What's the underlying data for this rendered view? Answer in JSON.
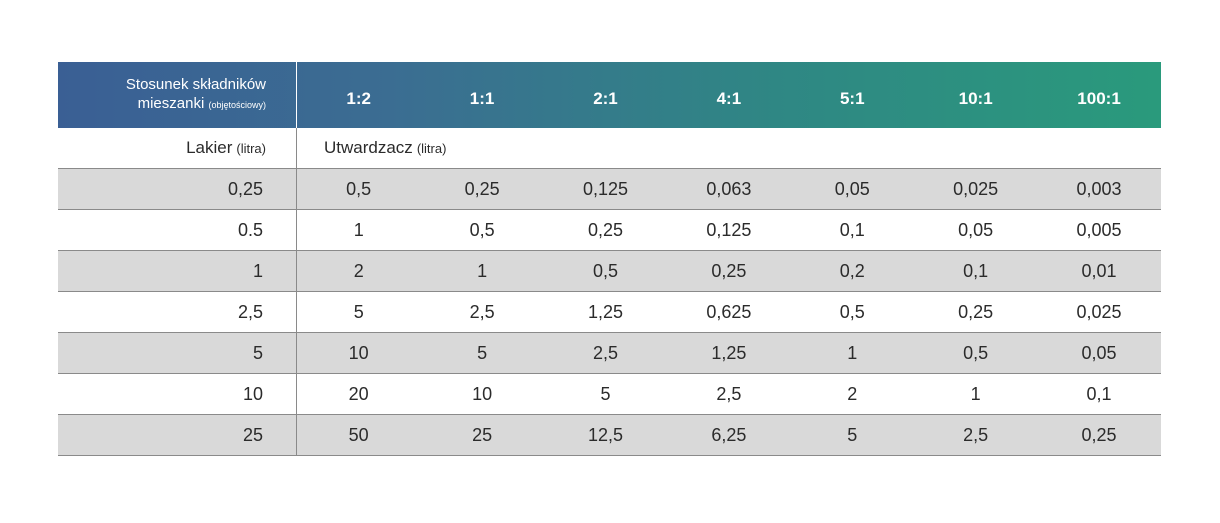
{
  "header": {
    "title_line1": "Stosunek składników",
    "title_line2": "mieszanki",
    "title_note": "(objętościowy)",
    "ratios": [
      "1:2",
      "1:1",
      "2:1",
      "4:1",
      "5:1",
      "10:1",
      "100:1"
    ]
  },
  "subheader": {
    "lacquer_label": "Lakier",
    "lacquer_unit": "(litra)",
    "hardener_label": "Utwardzacz",
    "hardener_unit": "(litra)"
  },
  "rows": [
    {
      "lacquer": "0,25",
      "values": [
        "0,5",
        "0,25",
        "0,125",
        "0,063",
        "0,05",
        "0,025",
        "0,003"
      ]
    },
    {
      "lacquer": "0.5",
      "values": [
        "1",
        "0,5",
        "0,25",
        "0,125",
        "0,1",
        "0,05",
        "0,005"
      ]
    },
    {
      "lacquer": "1",
      "values": [
        "2",
        "1",
        "0,5",
        "0,25",
        "0,2",
        "0,1",
        "0,01"
      ]
    },
    {
      "lacquer": "2,5",
      "values": [
        "5",
        "2,5",
        "1,25",
        "0,625",
        "0,5",
        "0,25",
        "0,025"
      ]
    },
    {
      "lacquer": "5",
      "values": [
        "10",
        "5",
        "2,5",
        "1,25",
        "1",
        "0,5",
        "0,05"
      ]
    },
    {
      "lacquer": "10",
      "values": [
        "20",
        "10",
        "5",
        "2,5",
        "2",
        "1",
        "0,1"
      ]
    },
    {
      "lacquer": "25",
      "values": [
        "50",
        "25",
        "12,5",
        "6,25",
        "5",
        "2,5",
        "0,25"
      ]
    }
  ],
  "colors": {
    "header_gradient_start": "#3a5f94",
    "header_gradient_end": "#2a9a7c",
    "row_shade": "#d9d9d9"
  }
}
